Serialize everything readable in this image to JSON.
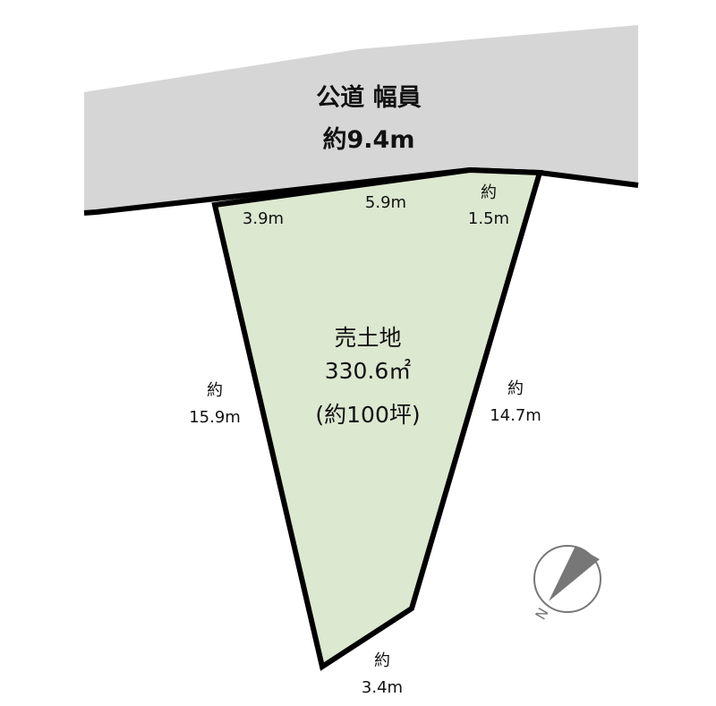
{
  "road": {
    "title": "公道 幅員",
    "width": "約9.4m",
    "color": "#d6d6d6"
  },
  "plot": {
    "title": "売土地",
    "area": "330.6㎡",
    "tsubo": "(約100坪)",
    "color": "#dce8d0"
  },
  "dimensions": {
    "front_left": "3.9m",
    "front_middle": "5.9m",
    "front_right_prefix": "約",
    "front_right": "1.5m",
    "left_prefix": "約",
    "left": "15.9m",
    "right_prefix": "約",
    "right": "14.7m",
    "bottom_prefix": "約",
    "bottom": "3.4m"
  },
  "compass": {
    "label": "N",
    "icon": "north-arrow-icon",
    "color": "#777777"
  }
}
